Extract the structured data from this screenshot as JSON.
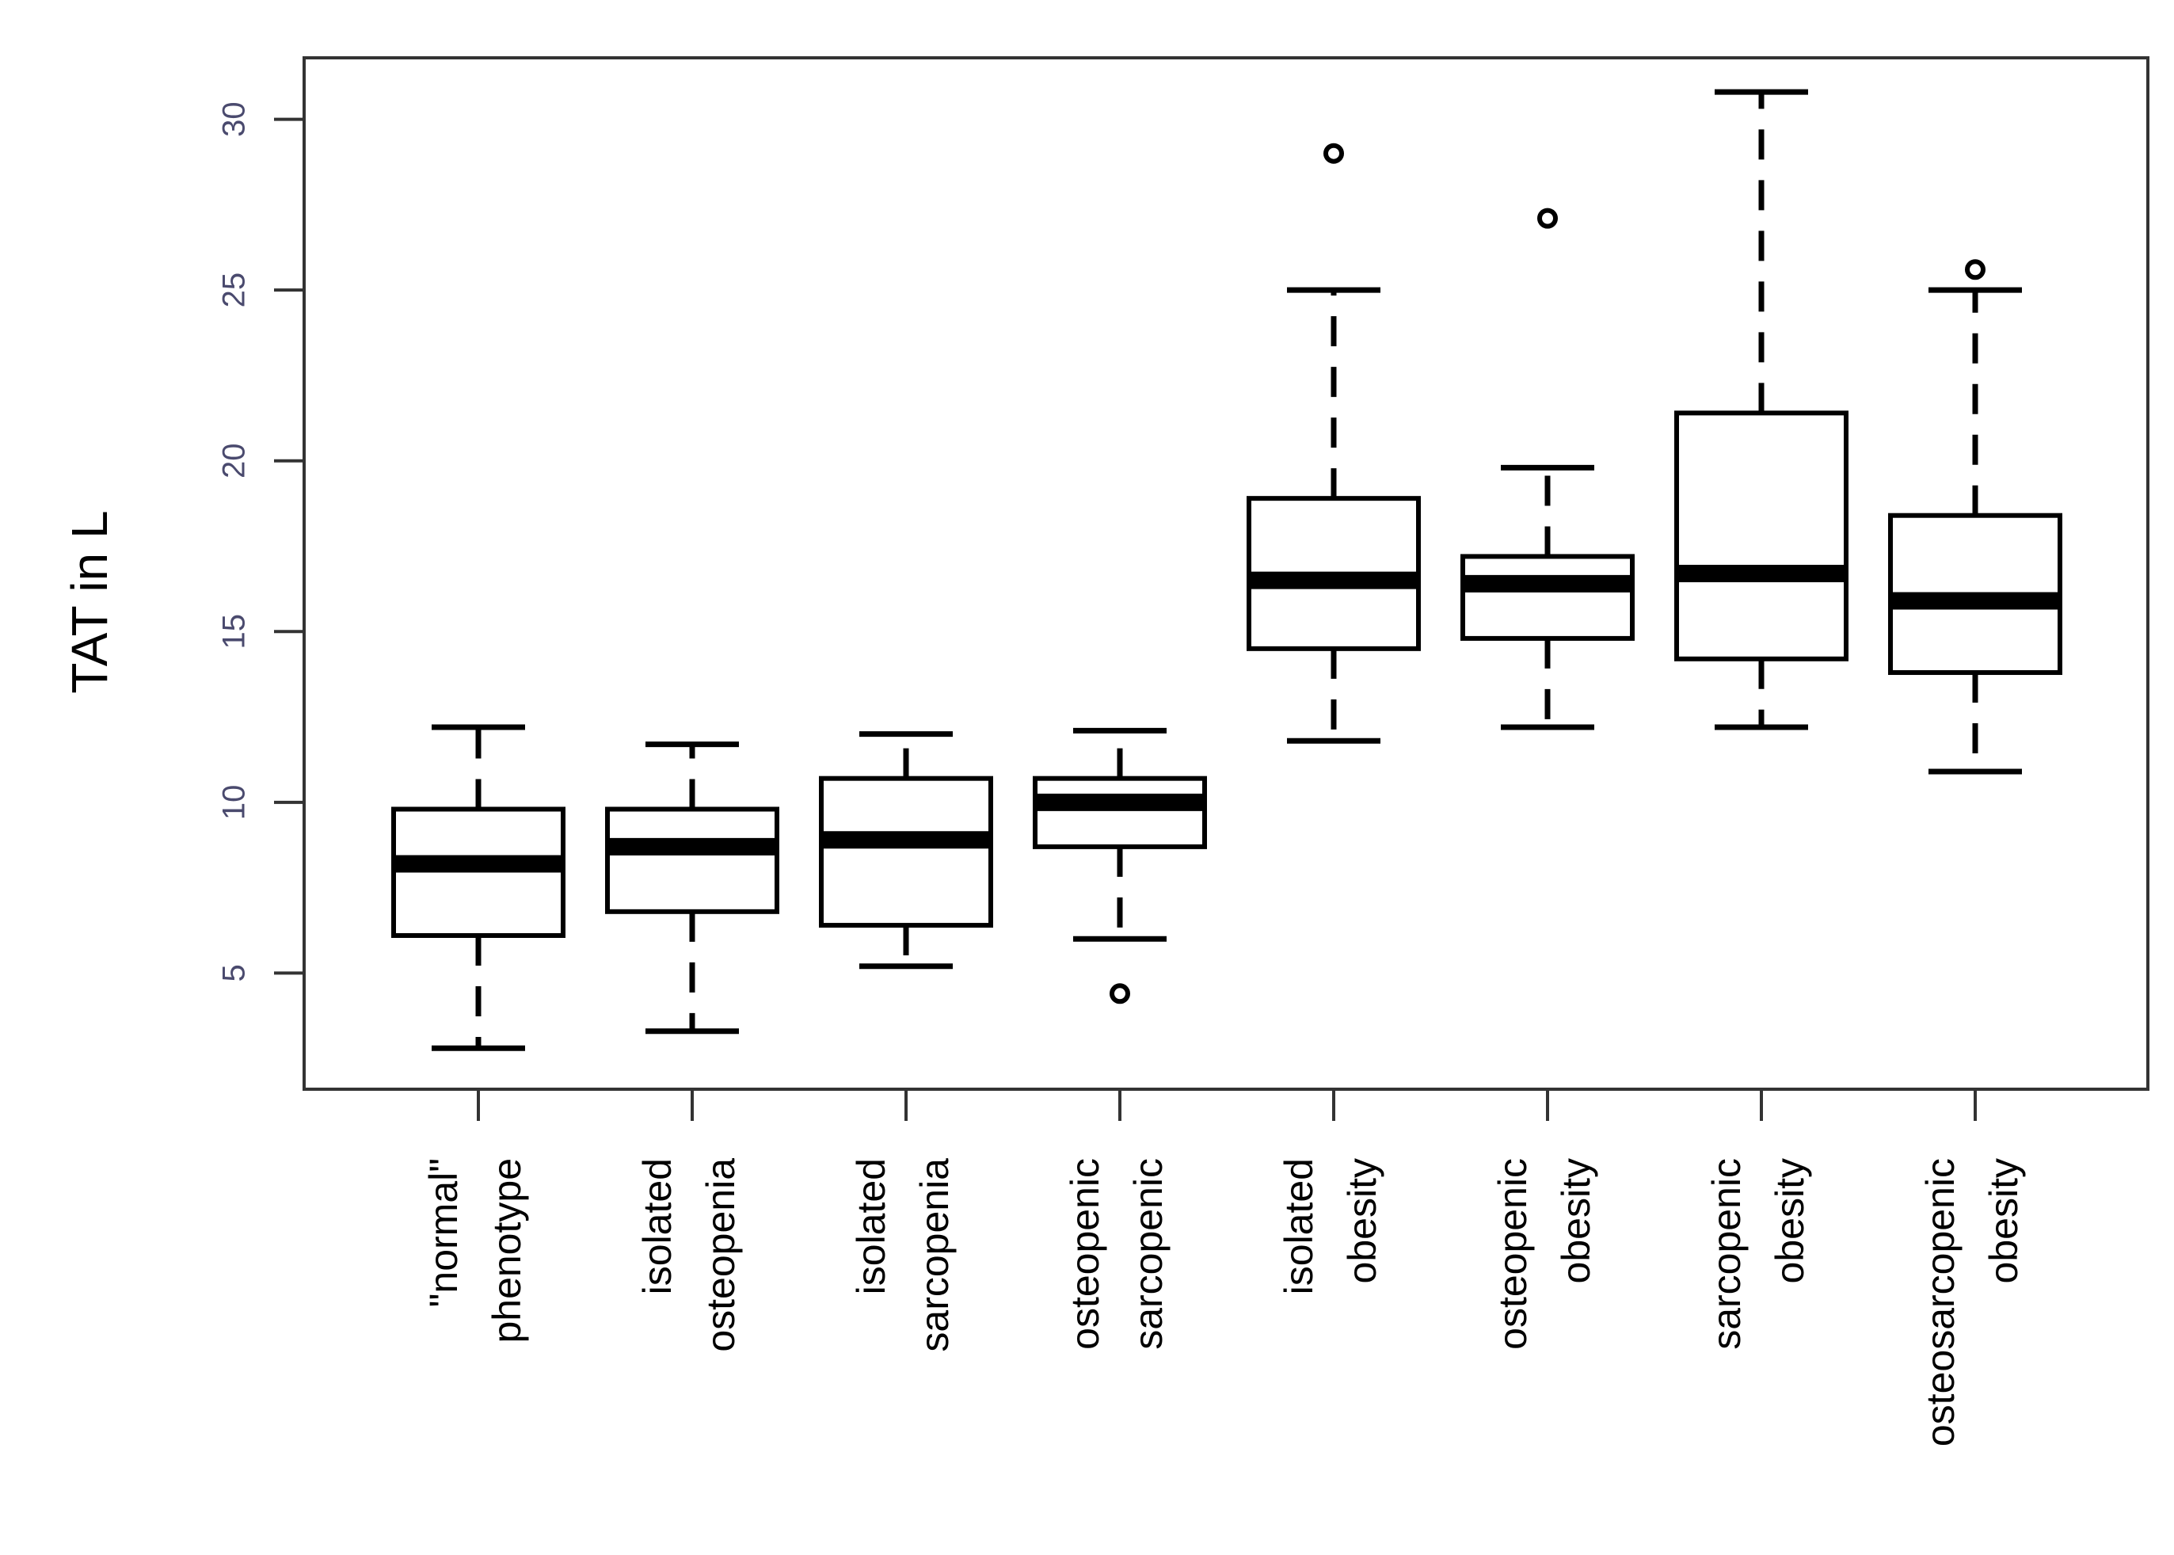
{
  "chart_data": {
    "type": "boxplot",
    "title": "",
    "xlabel": "",
    "ylabel": "TAT in L",
    "ylim": [
      1.6,
      31.8
    ],
    "yticks": [
      5,
      10,
      15,
      20,
      25,
      30
    ],
    "yticks_labels": [
      "5",
      "10",
      "15",
      "20",
      "25",
      "30"
    ],
    "grid": false,
    "categories": [
      {
        "lines": [
          "\"normal\"",
          "phenotype"
        ]
      },
      {
        "lines": [
          "isolated",
          "osteopenia"
        ]
      },
      {
        "lines": [
          "isolated",
          "sarcopenia"
        ]
      },
      {
        "lines": [
          "osteopenic",
          "sarcopenic"
        ]
      },
      {
        "lines": [
          "isolated",
          "obesity"
        ]
      },
      {
        "lines": [
          "osteopenic",
          "obesity"
        ]
      },
      {
        "lines": [
          "sarcopenic",
          "obesity"
        ]
      },
      {
        "lines": [
          "osteosarcopenic",
          "obesity"
        ]
      }
    ],
    "boxes": [
      {
        "whisker_low": 2.8,
        "q1": 6.1,
        "median": 8.2,
        "q3": 9.8,
        "whisker_high": 12.2,
        "outliers": []
      },
      {
        "whisker_low": 3.3,
        "q1": 6.8,
        "median": 8.7,
        "q3": 9.8,
        "whisker_high": 11.7,
        "outliers": []
      },
      {
        "whisker_low": 5.2,
        "q1": 6.4,
        "median": 8.9,
        "q3": 10.7,
        "whisker_high": 12.0,
        "outliers": []
      },
      {
        "whisker_low": 6.0,
        "q1": 8.7,
        "median": 10.0,
        "q3": 10.7,
        "whisker_high": 12.1,
        "outliers": [
          4.4
        ]
      },
      {
        "whisker_low": 11.8,
        "q1": 14.5,
        "median": 16.5,
        "q3": 18.9,
        "whisker_high": 25.0,
        "outliers": [
          29.0
        ]
      },
      {
        "whisker_low": 12.2,
        "q1": 14.8,
        "median": 16.4,
        "q3": 17.2,
        "whisker_high": 19.8,
        "outliers": [
          27.1
        ]
      },
      {
        "whisker_low": 12.2,
        "q1": 14.2,
        "median": 16.7,
        "q3": 21.4,
        "whisker_high": 30.8,
        "outliers": []
      },
      {
        "whisker_low": 10.9,
        "q1": 13.8,
        "median": 15.9,
        "q3": 18.4,
        "whisker_high": 25.0,
        "outliers": [
          25.6
        ]
      }
    ]
  }
}
